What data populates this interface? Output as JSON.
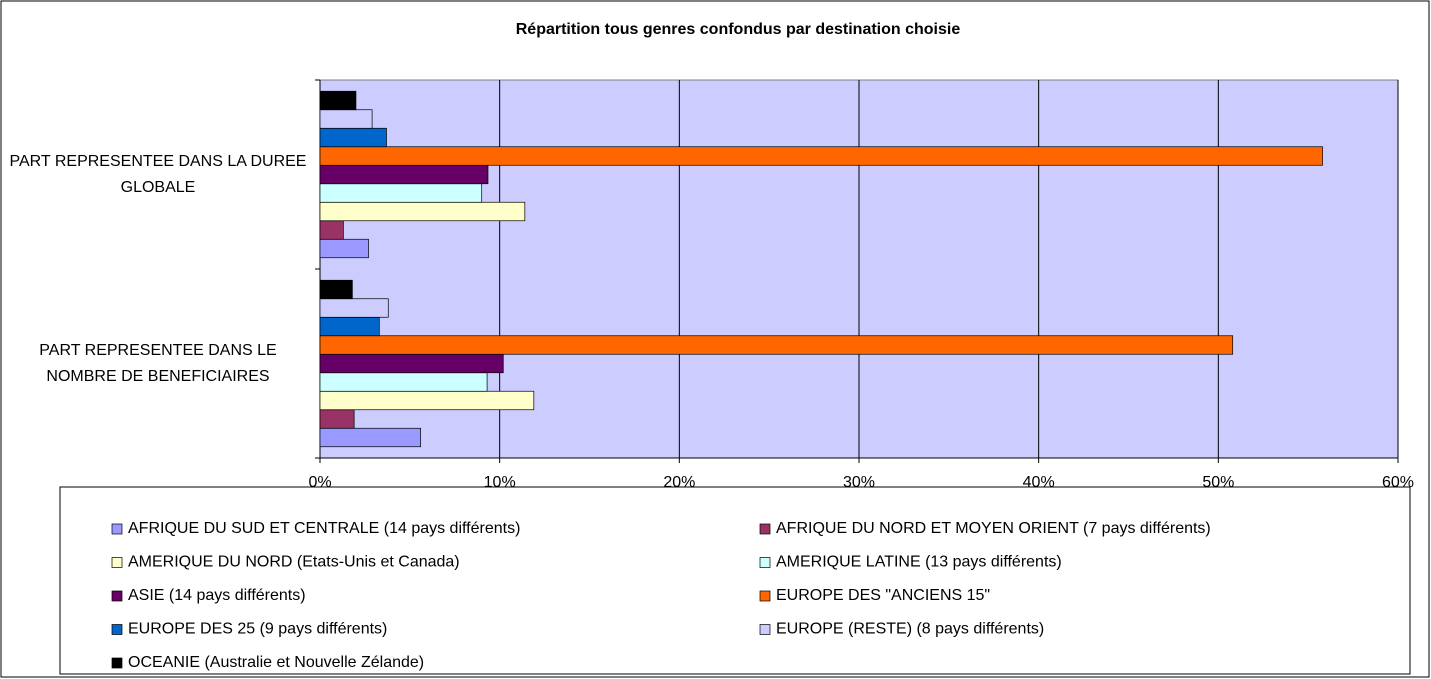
{
  "chart_data": {
    "type": "barh",
    "title": "Répartition tous genres confondus par destination choisie",
    "categories": [
      "PART REPRESENTEE DANS LA DUREE GLOBALE",
      "PART REPRESENTEE DANS LE NOMBRE DE BENEFICIAIRES"
    ],
    "series": [
      {
        "name": "AFRIQUE DU SUD ET CENTRALE (14 pays différents)",
        "color": "#9999ff",
        "values": [
          2.7,
          5.6
        ]
      },
      {
        "name": "AFRIQUE DU NORD ET MOYEN ORIENT (7 pays différents)",
        "color": "#993366",
        "values": [
          1.3,
          1.9
        ]
      },
      {
        "name": "AMERIQUE DU NORD (Etats-Unis et Canada)",
        "color": "#ffffcc",
        "values": [
          11.4,
          11.9
        ]
      },
      {
        "name": "AMERIQUE LATINE (13 pays différents)",
        "color": "#ccffff",
        "values": [
          9.0,
          9.3
        ]
      },
      {
        "name": "ASIE (14 pays différents)",
        "color": "#660066",
        "values": [
          9.35,
          10.2
        ]
      },
      {
        "name": "EUROPE DES \"ANCIENS 15\"",
        "color": "#ff6600",
        "values": [
          55.8,
          50.8
        ]
      },
      {
        "name": "EUROPE DES 25 (9 pays différents)",
        "color": "#0066cc",
        "values": [
          3.7,
          3.3
        ]
      },
      {
        "name": "EUROPE (RESTE) (8 pays différents)",
        "color": "#ccccff",
        "values": [
          2.9,
          3.8
        ]
      },
      {
        "name": "OCEANIE (Australie et Nouvelle Zélande)",
        "color": "#000000",
        "values": [
          2.0,
          1.8
        ]
      }
    ],
    "xlim": [
      0,
      60
    ],
    "xticks": [
      {
        "value": 0,
        "label": "0%"
      },
      {
        "value": 10,
        "label": "10%"
      },
      {
        "value": 20,
        "label": "20%"
      },
      {
        "value": 30,
        "label": "30%"
      },
      {
        "value": 40,
        "label": "40%"
      },
      {
        "value": 50,
        "label": "50%"
      },
      {
        "value": 60,
        "label": "60%"
      }
    ],
    "grid": true,
    "plot_background": "#ccccff",
    "legend": "bottom"
  }
}
